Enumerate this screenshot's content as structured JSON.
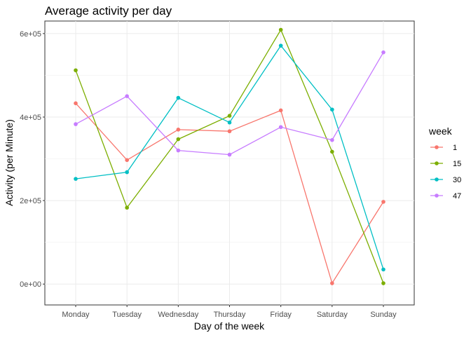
{
  "chart_data": {
    "type": "line",
    "title": "Average activity per day",
    "xlabel": "Day of the week",
    "ylabel": "Activity (per Minute)",
    "categories": [
      "Monday",
      "Tuesday",
      "Wednesday",
      "Thursday",
      "Friday",
      "Saturday",
      "Sunday"
    ],
    "ylim": [
      -50000,
      630000
    ],
    "yticks": [
      0,
      200000,
      400000,
      600000
    ],
    "ytick_labels": [
      "0e+00",
      "2e+05",
      "4e+05",
      "6e+05"
    ],
    "grid": true,
    "legend": {
      "title": "week",
      "position": "right"
    },
    "series": [
      {
        "name": "1",
        "color": "#F8766D",
        "values": [
          433000,
          297000,
          370000,
          366000,
          416000,
          2000,
          197000
        ]
      },
      {
        "name": "15",
        "color": "#7CAE00",
        "values": [
          512000,
          183000,
          347000,
          403000,
          609000,
          317000,
          2000
        ]
      },
      {
        "name": "30",
        "color": "#00BFC4",
        "values": [
          252000,
          268000,
          446000,
          387000,
          571000,
          418000,
          35000
        ]
      },
      {
        "name": "47",
        "color": "#C77CFF",
        "values": [
          383000,
          450000,
          320000,
          310000,
          376000,
          345000,
          555000
        ]
      }
    ]
  }
}
